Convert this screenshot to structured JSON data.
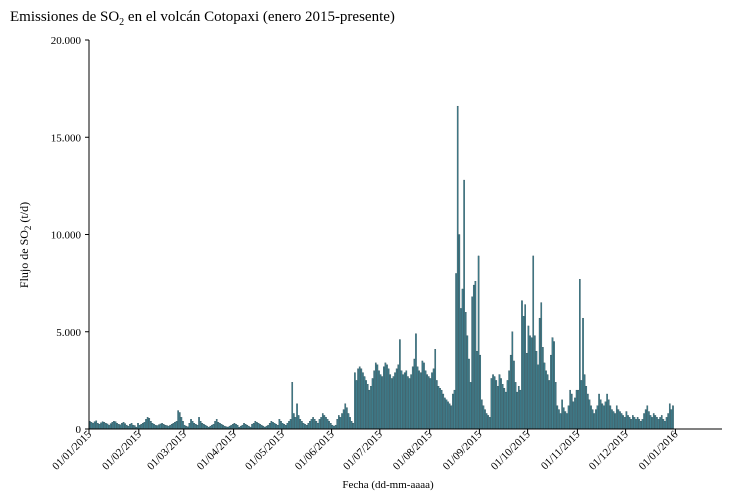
{
  "chart_data": {
    "type": "bar",
    "title_parts": [
      "Emissiones de SO",
      "2",
      " en el volcán Cotopaxi (enero 2015-presente)"
    ],
    "ylabel_parts": [
      "Flujo de SO",
      "2",
      " (t/d)"
    ],
    "xlabel": "Fecha (dd-mm-aaaa)",
    "ylim": [
      0,
      20000
    ],
    "y_ticks": [
      0,
      5000,
      10000,
      15000,
      20000
    ],
    "y_tick_labels": [
      "0",
      "5.000",
      "10.000",
      "15.000",
      "20.000"
    ],
    "x_start": "2015-01-01",
    "x_end": "2016-01-29",
    "x_tick_dates": [
      "2015-01-01",
      "2015-02-01",
      "2015-03-01",
      "2015-04-01",
      "2015-05-01",
      "2015-06-01",
      "2015-07-01",
      "2015-08-01",
      "2015-09-01",
      "2015-10-01",
      "2015-11-01",
      "2015-12-01",
      "2016-01-01"
    ],
    "x_tick_labels": [
      "01/01/2015",
      "01/02/2015",
      "01/03/2015",
      "01/04/2015",
      "01/05/2015",
      "01/06/2015",
      "01/07/2015",
      "01/08/2015",
      "01/09/2015",
      "01/10/2015",
      "01/11/2015",
      "01/12/2015",
      "01/01/2016"
    ],
    "bar_color": "#3f7f8e",
    "series": [
      {
        "values": [
          400,
          350,
          300,
          380,
          420,
          300,
          250,
          320,
          380,
          350,
          300,
          260,
          200,
          280,
          350,
          400,
          380,
          300,
          250,
          220,
          300,
          350,
          280,
          200,
          150,
          250,
          300,
          200,
          180,
          100,
          300,
          200,
          250,
          300,
          350,
          500,
          600,
          550,
          400,
          300,
          250,
          200,
          180,
          220,
          260,
          300,
          250,
          200,
          180,
          150,
          200,
          250,
          300,
          350,
          400,
          950,
          850,
          600,
          400,
          200,
          150,
          120,
          300,
          500,
          400,
          300,
          250,
          200,
          600,
          400,
          300,
          250,
          200,
          150,
          100,
          150,
          200,
          250,
          400,
          500,
          350,
          300,
          250,
          200,
          150,
          120,
          100,
          150,
          200,
          250,
          300,
          250,
          200,
          100,
          150,
          200,
          300,
          250,
          200,
          150,
          100,
          250,
          300,
          400,
          350,
          300,
          250,
          200,
          150,
          100,
          150,
          200,
          300,
          400,
          350,
          300,
          250,
          200,
          500,
          400,
          300,
          250,
          200,
          300,
          400,
          500,
          2400,
          800,
          600,
          1300,
          700,
          500,
          400,
          300,
          250,
          200,
          300,
          400,
          500,
          600,
          500,
          400,
          300,
          500,
          600,
          800,
          700,
          600,
          500,
          400,
          300,
          200,
          150,
          200,
          500,
          700,
          600,
          800,
          1000,
          1300,
          1100,
          800,
          600,
          400,
          300,
          2900,
          2500,
          3100,
          3200,
          3100,
          2900,
          2700,
          2500,
          2300,
          2000,
          2200,
          2600,
          3000,
          3400,
          3300,
          3000,
          2800,
          2700,
          3200,
          3400,
          3300,
          3100,
          2800,
          2600,
          2700,
          2900,
          3100,
          3300,
          4600,
          3000,
          2800,
          2900,
          3000,
          2700,
          2600,
          2800,
          3200,
          3600,
          4900,
          3200,
          3000,
          2900,
          3500,
          3400,
          3000,
          2800,
          2700,
          2600,
          2900,
          3100,
          4100,
          2500,
          2200,
          2100,
          2000,
          1800,
          1600,
          1500,
          1400,
          1300,
          1200,
          1800,
          2000,
          8000,
          16600,
          10000,
          6200,
          7200,
          12800,
          6000,
          4800,
          3600,
          2400,
          6800,
          7400,
          7600,
          4000,
          8900,
          3800,
          1500,
          1200,
          1000,
          800,
          700,
          600,
          2600,
          2800,
          2700,
          2500,
          2200,
          2800,
          2600,
          2300,
          2100,
          1900,
          2500,
          3000,
          3800,
          5000,
          3500,
          2400,
          1900,
          2200,
          2000,
          6600,
          5800,
          6400,
          3900,
          5300,
          4800,
          4700,
          8900,
          4800,
          4000,
          3300,
          5700,
          6500,
          4200,
          3400,
          3000,
          2800,
          2500,
          3800,
          4700,
          4500,
          2400,
          1200,
          1000,
          800,
          1500,
          1100,
          900,
          800,
          1200,
          2000,
          1800,
          1400,
          1600,
          2000,
          2000,
          7700,
          2500,
          5700,
          2800,
          2200,
          1800,
          1500,
          1200,
          1000,
          800,
          1000,
          1200,
          1800,
          1500,
          1300,
          1200,
          1400,
          1800,
          1500,
          1200,
          1000,
          900,
          800,
          1200,
          1000,
          900,
          800,
          700,
          600,
          900,
          700,
          600,
          500,
          700,
          600,
          500,
          600,
          500,
          400,
          500,
          800,
          1000,
          1200,
          900,
          700,
          600,
          800,
          700,
          600,
          500,
          600,
          700,
          500,
          400,
          600,
          800,
          1300,
          1000,
          1200
        ]
      }
    ]
  }
}
